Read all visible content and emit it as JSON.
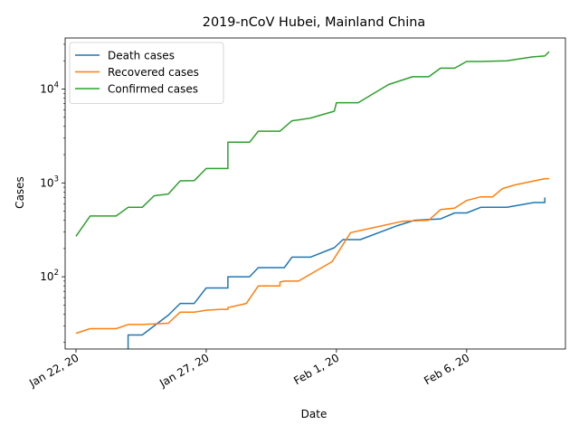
{
  "chart_data": {
    "type": "line",
    "title": "2019-nCoV Hubei, Mainland China",
    "xlabel": "Date",
    "ylabel": "Cases",
    "yscale": "log",
    "xlim": [
      "2020-01-21T14:00",
      "2020-02-09T19:00"
    ],
    "ylim": [
      17,
      35000
    ],
    "x_ticks": [
      {
        "date": "2020-01-22",
        "label": "Jan 22, 20"
      },
      {
        "date": "2020-01-27",
        "label": "Jan 27, 20"
      },
      {
        "date": "2020-02-01",
        "label": "Feb 1, 20"
      },
      {
        "date": "2020-02-06",
        "label": "Feb 6, 20"
      }
    ],
    "y_ticks": [
      {
        "value": 100,
        "base": "10",
        "exp": "2"
      },
      {
        "value": 1000,
        "base": "10",
        "exp": "3"
      },
      {
        "value": 10000,
        "base": "10",
        "exp": "4"
      }
    ],
    "legend_position": "top-left",
    "grid": false,
    "series": [
      {
        "name": "Death cases",
        "color": "#1f77b4",
        "points": [
          [
            "2020-01-24T00:00",
            17
          ],
          [
            "2020-01-24T00:00",
            24
          ],
          [
            "2020-01-24T13:00",
            24
          ],
          [
            "2020-01-25T00:00",
            30
          ],
          [
            "2020-01-25T13:00",
            39
          ],
          [
            "2020-01-26T00:00",
            52
          ],
          [
            "2020-01-26T13:00",
            52
          ],
          [
            "2020-01-27T00:00",
            76
          ],
          [
            "2020-01-27T20:00",
            76
          ],
          [
            "2020-01-27T20:00",
            100
          ],
          [
            "2020-01-28T16:00",
            100
          ],
          [
            "2020-01-29T00:00",
            125
          ],
          [
            "2020-01-30T00:00",
            125
          ],
          [
            "2020-01-30T07:00",
            162
          ],
          [
            "2020-01-31T00:00",
            162
          ],
          [
            "2020-01-31T22:00",
            204
          ],
          [
            "2020-02-01T06:00",
            249
          ],
          [
            "2020-02-01T22:00",
            249
          ],
          [
            "2020-02-03T08:00",
            350
          ],
          [
            "2020-02-04T00:00",
            400
          ],
          [
            "2020-02-05T00:00",
            414
          ],
          [
            "2020-02-05T13:00",
            479
          ],
          [
            "2020-02-06T00:00",
            479
          ],
          [
            "2020-02-06T13:00",
            549
          ],
          [
            "2020-02-07T13:00",
            549
          ],
          [
            "2020-02-08T14:00",
            618
          ],
          [
            "2020-02-09T00:00",
            618
          ],
          [
            "2020-02-09T00:00",
            700
          ]
        ]
      },
      {
        "name": "Recovered cases",
        "color": "#ff7f0e",
        "points": [
          [
            "2020-01-22T00:00",
            25
          ],
          [
            "2020-01-22T13:00",
            28
          ],
          [
            "2020-01-23T13:00",
            28
          ],
          [
            "2020-01-24T00:00",
            31
          ],
          [
            "2020-01-24T13:00",
            31
          ],
          [
            "2020-01-25T13:00",
            32
          ],
          [
            "2020-01-26T00:00",
            42
          ],
          [
            "2020-01-26T13:00",
            42
          ],
          [
            "2020-01-27T00:00",
            44
          ],
          [
            "2020-01-27T13:00",
            45
          ],
          [
            "2020-01-27T20:00",
            45
          ],
          [
            "2020-01-27T20:00",
            47
          ],
          [
            "2020-01-28T13:00",
            52
          ],
          [
            "2020-01-29T00:00",
            80
          ],
          [
            "2020-01-29T20:00",
            80
          ],
          [
            "2020-01-29T20:00",
            88
          ],
          [
            "2020-01-30T00:00",
            90
          ],
          [
            "2020-01-30T13:00",
            90
          ],
          [
            "2020-01-31T20:00",
            145
          ],
          [
            "2020-02-01T13:00",
            295
          ],
          [
            "2020-02-03T13:00",
            390
          ],
          [
            "2020-02-04T13:00",
            400
          ],
          [
            "2020-02-05T00:00",
            520
          ],
          [
            "2020-02-05T13:00",
            540
          ],
          [
            "2020-02-06T00:00",
            650
          ],
          [
            "2020-02-06T13:00",
            710
          ],
          [
            "2020-02-07T00:00",
            710
          ],
          [
            "2020-02-07T09:00",
            870
          ],
          [
            "2020-02-07T20:00",
            950
          ],
          [
            "2020-02-09T00:00",
            1110
          ],
          [
            "2020-02-09T04:00",
            1110
          ]
        ]
      },
      {
        "name": "Confirmed cases",
        "color": "#2ca02c",
        "points": [
          [
            "2020-01-22T00:00",
            270
          ],
          [
            "2020-01-22T13:00",
            444
          ],
          [
            "2020-01-23T13:00",
            444
          ],
          [
            "2020-01-24T00:00",
            549
          ],
          [
            "2020-01-24T13:00",
            549
          ],
          [
            "2020-01-25T00:00",
            729
          ],
          [
            "2020-01-25T13:00",
            761
          ],
          [
            "2020-01-26T00:00",
            1052
          ],
          [
            "2020-01-26T13:00",
            1058
          ],
          [
            "2020-01-27T00:00",
            1423
          ],
          [
            "2020-01-27T20:00",
            1423
          ],
          [
            "2020-01-27T20:00",
            2714
          ],
          [
            "2020-01-28T16:00",
            2714
          ],
          [
            "2020-01-29T00:00",
            3554
          ],
          [
            "2020-01-29T20:00",
            3554
          ],
          [
            "2020-01-30T07:00",
            4586
          ],
          [
            "2020-01-30T13:00",
            4690
          ],
          [
            "2020-01-31T00:00",
            4903
          ],
          [
            "2020-01-31T22:00",
            5806
          ],
          [
            "2020-02-01T00:00",
            7153
          ],
          [
            "2020-02-01T20:00",
            7153
          ],
          [
            "2020-02-03T00:00",
            11177
          ],
          [
            "2020-02-03T22:00",
            13522
          ],
          [
            "2020-02-04T13:00",
            13522
          ],
          [
            "2020-02-05T00:00",
            16678
          ],
          [
            "2020-02-05T13:00",
            16678
          ],
          [
            "2020-02-06T00:00",
            19665
          ],
          [
            "2020-02-06T13:00",
            19665
          ],
          [
            "2020-02-07T13:00",
            20000
          ],
          [
            "2020-02-08T13:00",
            22000
          ],
          [
            "2020-02-09T00:00",
            22500
          ],
          [
            "2020-02-09T04:00",
            25000
          ]
        ]
      }
    ]
  }
}
